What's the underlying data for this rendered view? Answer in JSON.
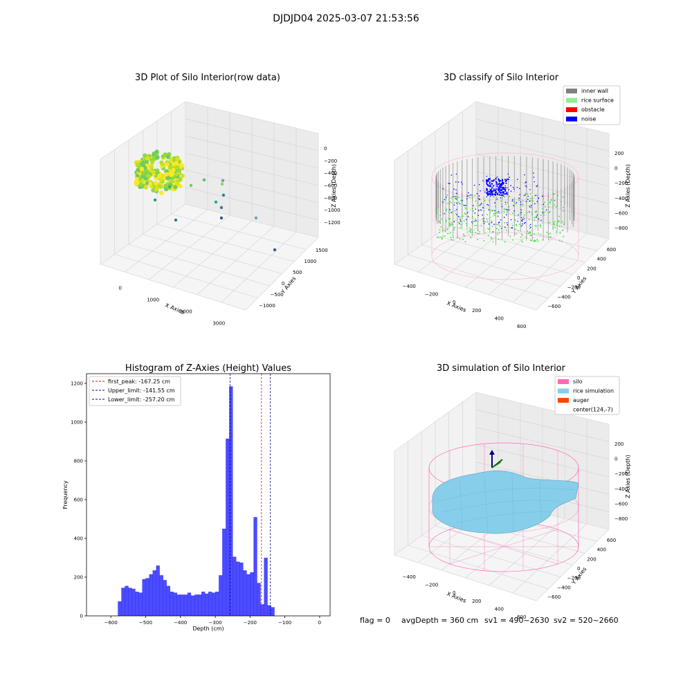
{
  "figure": {
    "suptitle": "DJDJD04 2025-03-07 21:53:56",
    "footer": {
      "flag": "flag = 0",
      "avg": "avgDepth = 360 cm",
      "sv1": "sv1 = 490~2630",
      "sv2": "sv2 = 520~2660"
    }
  },
  "chart_data": [
    {
      "type": "scatter3d",
      "title": "3D Plot of Silo Interior(row data)",
      "xlabel": "X Axies",
      "ylabel": "Y Axies",
      "zlabel": "Z Axies (Depth)",
      "x_ticks": [
        "0",
        "1000",
        "2000",
        "3000"
      ],
      "y_ticks": [
        "−1000",
        "−500",
        "0",
        "500",
        "1000",
        "1500"
      ],
      "z_ticks": [
        "0",
        "−200",
        "−400",
        "−600",
        "−800",
        "−1000",
        "−1200"
      ],
      "colormap": "viridis",
      "grid": true
    },
    {
      "type": "scatter3d",
      "title": "3D classify of Silo Interior",
      "xlabel": "X Axies",
      "ylabel": "Y Axies",
      "zlabel": "Z Axies (Depth)",
      "x_ticks": [
        "−400",
        "−200",
        "0",
        "200",
        "400",
        "600"
      ],
      "y_ticks": [
        "−600",
        "−400",
        "−200",
        "0",
        "200",
        "400",
        "600"
      ],
      "z_ticks": [
        "200",
        "0",
        "−200",
        "−400",
        "−600",
        "−800"
      ],
      "legend": [
        {
          "name": "inner wall",
          "color": "#808080"
        },
        {
          "name": "rice surface",
          "color": "#90ee90"
        },
        {
          "name": "obstacle",
          "color": "#ff0000"
        },
        {
          "name": "noise",
          "color": "#0000ff"
        }
      ],
      "legend_position": "top-right",
      "grid": true
    },
    {
      "type": "bar",
      "title": "Histogram of Z-Axies (Height) Values",
      "xlabel": "Depth (cm)",
      "ylabel": "Frequency",
      "xlim": [
        -670,
        30
      ],
      "ylim": [
        0,
        1250
      ],
      "bin_width": 10,
      "bin_start": -580,
      "values": [
        75,
        145,
        155,
        145,
        140,
        125,
        120,
        190,
        195,
        215,
        235,
        260,
        210,
        185,
        155,
        125,
        120,
        110,
        110,
        110,
        120,
        105,
        110,
        110,
        125,
        115,
        125,
        120,
        125,
        210,
        450,
        915,
        1185,
        305,
        280,
        275,
        235,
        215,
        225,
        510,
        170,
        60,
        300,
        55,
        45
      ],
      "bar_color": "#0000ff",
      "x_ticks": [
        "−600",
        "−500",
        "−400",
        "−300",
        "−200",
        "−100",
        "0"
      ],
      "x_tick_values": [
        -600,
        -500,
        -400,
        -300,
        -200,
        -100,
        0
      ],
      "y_ticks": [
        "0",
        "200",
        "400",
        "600",
        "800",
        "1000",
        "1200"
      ],
      "y_tick_values": [
        0,
        200,
        400,
        600,
        800,
        1000,
        1200
      ],
      "vlines": [
        {
          "label": "first_peak: -167.25 cm",
          "x": -167.25,
          "color": "#ff0000"
        },
        {
          "label": "Upper_limit: -141.55 cm",
          "x": -141.55,
          "color": "#00008b"
        },
        {
          "label": "Lower_limit: -257.20 cm",
          "x": -257.2,
          "color": "#00008b"
        }
      ],
      "legend_position": "top-left"
    },
    {
      "type": "surface3d",
      "title": "3D simulation of Silo Interior",
      "xlabel": "X Axies",
      "ylabel": "Y Axies",
      "zlabel": "Z Axies (Depth)",
      "x_ticks": [
        "−400",
        "−200",
        "0",
        "200",
        "400",
        "600"
      ],
      "y_ticks": [
        "−600",
        "−400",
        "−200",
        "0",
        "200",
        "400",
        "600"
      ],
      "z_ticks": [
        "200",
        "0",
        "−200",
        "−400",
        "−600",
        "−800"
      ],
      "legend": [
        {
          "name": "silo",
          "color": "#ff69b4"
        },
        {
          "name": "rice simulation",
          "color": "#87ceeb"
        },
        {
          "name": "auger",
          "color": "#ff4500"
        },
        {
          "name": "center(124,-7)",
          "color": ""
        }
      ],
      "legend_position": "top-right",
      "grid": true
    }
  ]
}
